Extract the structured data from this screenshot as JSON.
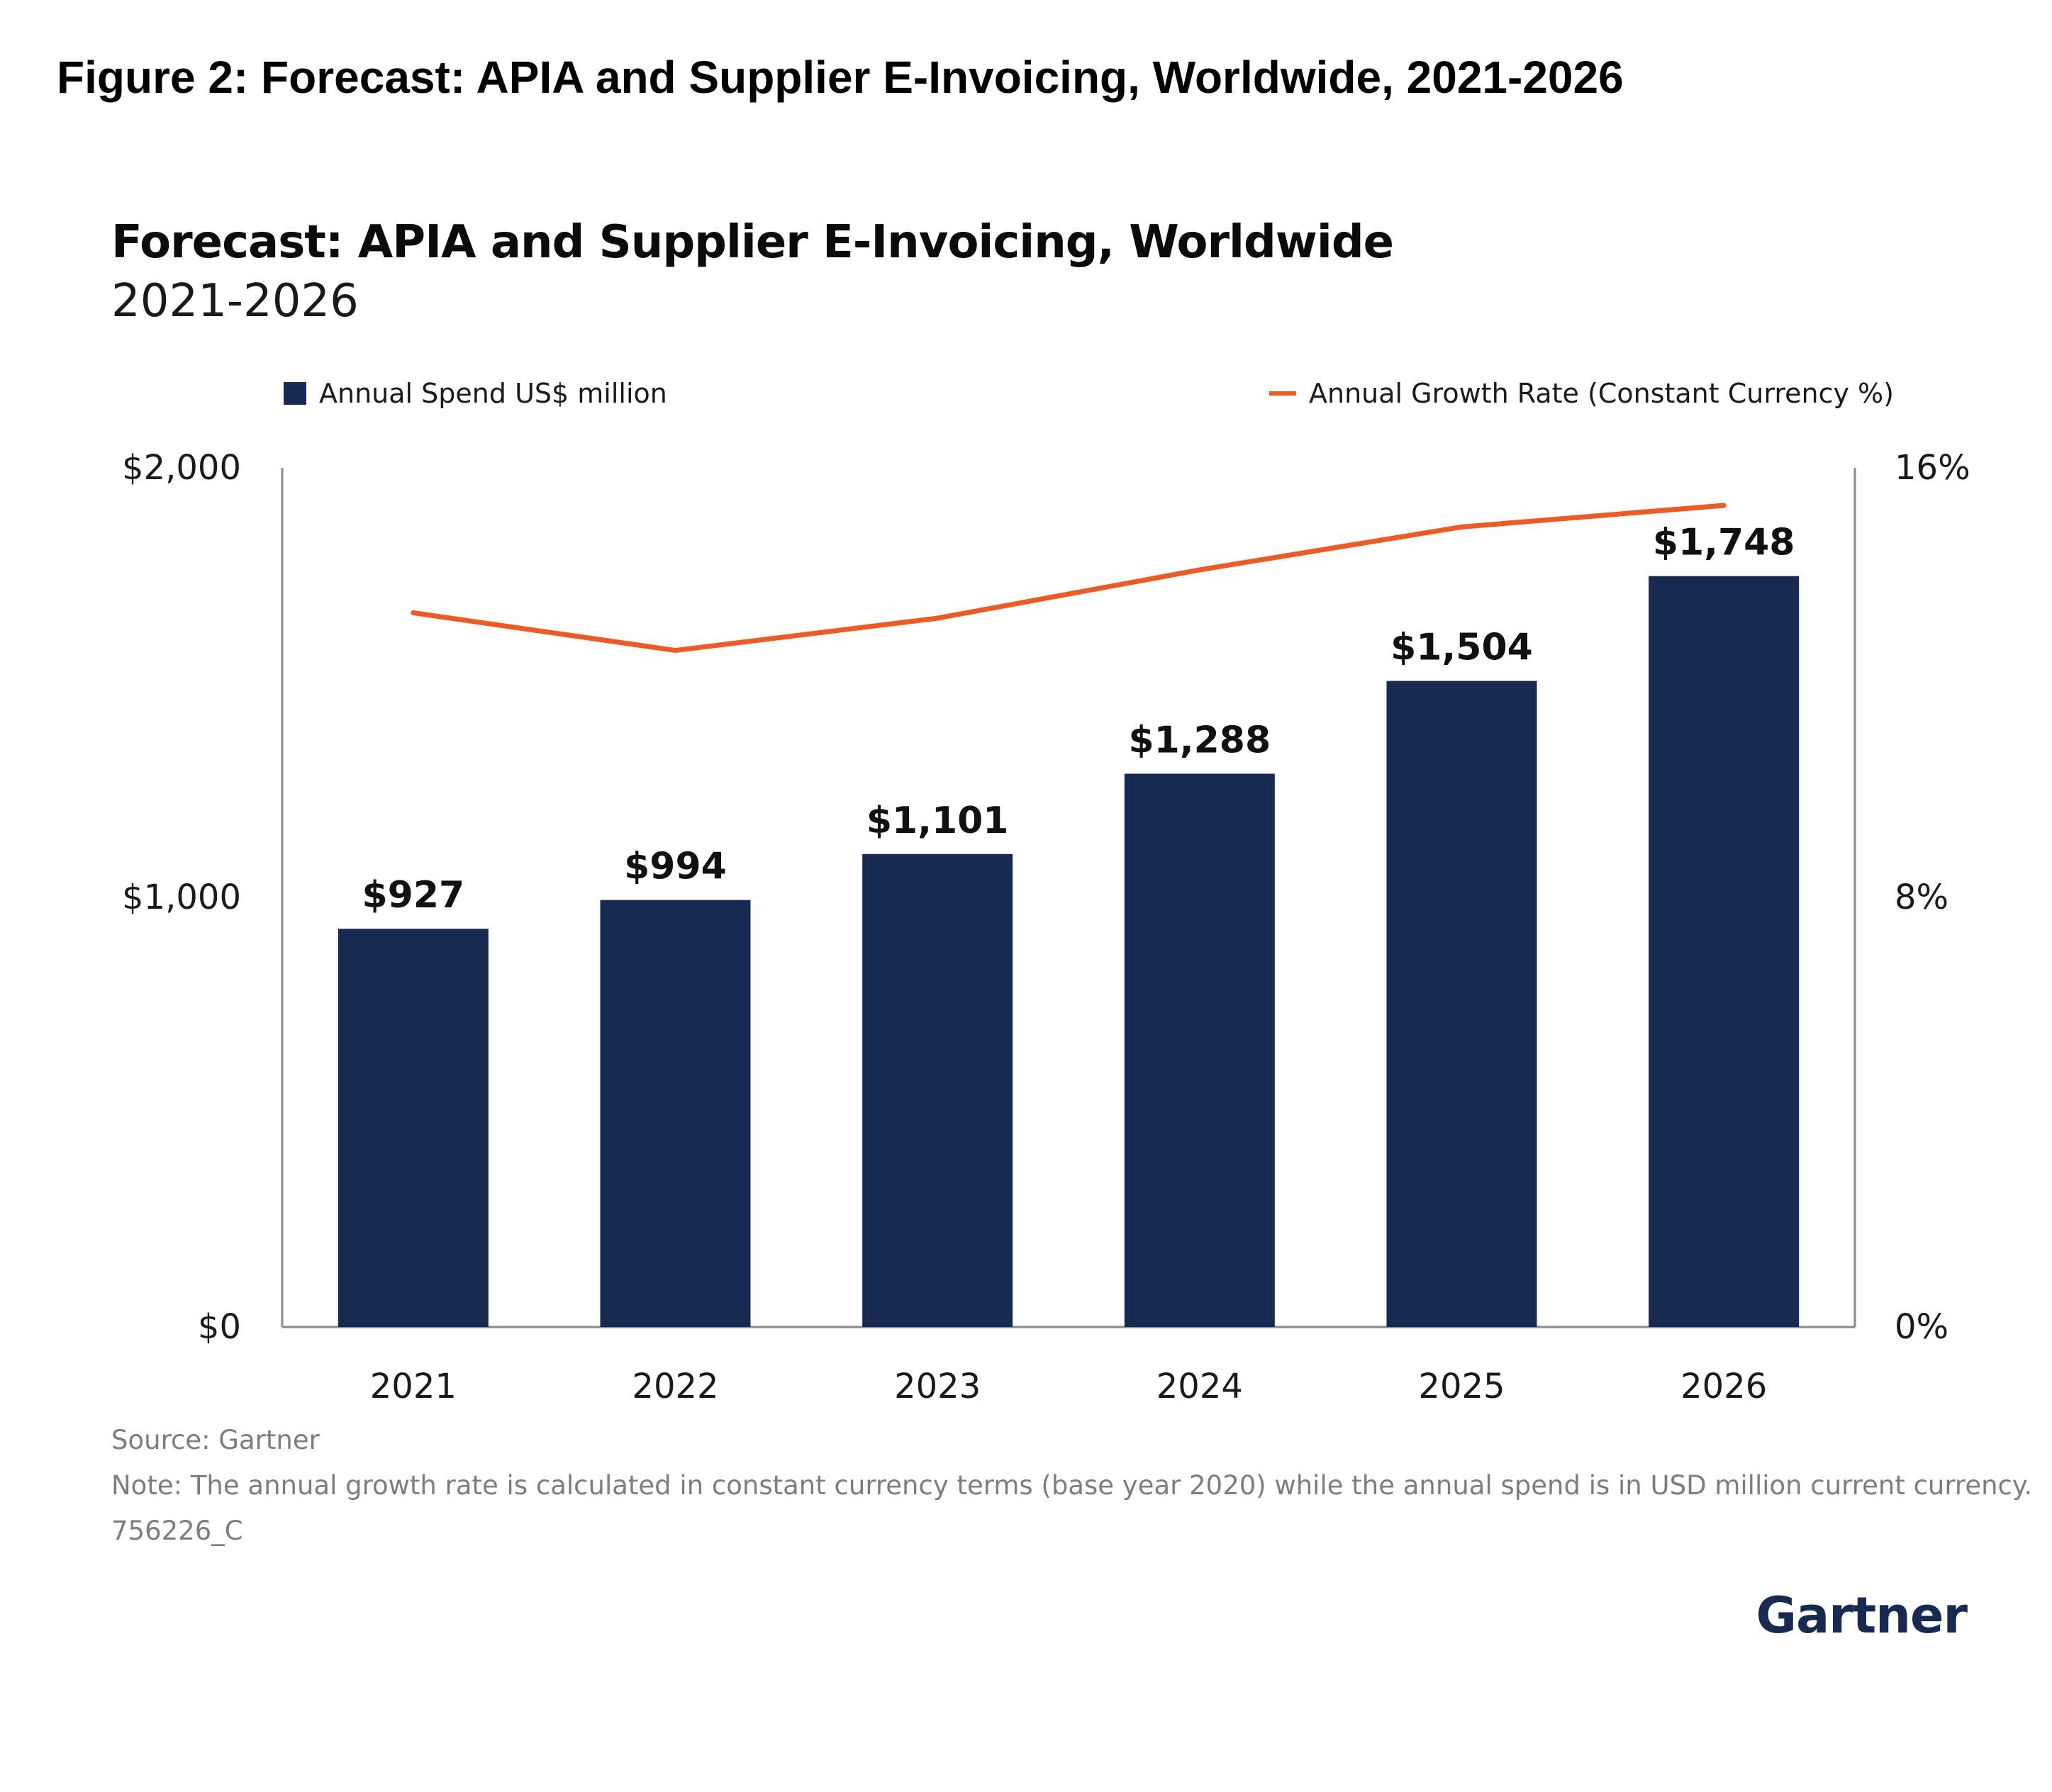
{
  "figure_title": "Figure 2: Forecast: APIA and Supplier E-Invoicing, Worldwide, 2021-2026",
  "chart_data": {
    "type": "bar",
    "title": "Forecast: APIA and Supplier E-Invoicing, Worldwide",
    "subtitle": "2021-2026",
    "categories": [
      "2021",
      "2022",
      "2023",
      "2024",
      "2025",
      "2026"
    ],
    "series": [
      {
        "name": "Annual Spend US$ million",
        "type": "bar",
        "axis": "left",
        "color": "#172a52",
        "values": [
          927,
          994,
          1101,
          1288,
          1504,
          1748
        ],
        "labels": [
          "$927",
          "$994",
          "$1,101",
          "$1,288",
          "$1,504",
          "$1,748"
        ]
      },
      {
        "name": "Annual Growth Rate (Constant Currency %)",
        "type": "line",
        "axis": "right",
        "color": "#f05a22",
        "values": [
          13.3,
          12.6,
          13.2,
          14.1,
          14.9,
          15.3
        ]
      }
    ],
    "y_left": {
      "lim": [
        0,
        2000
      ],
      "ticks": [
        0,
        1000,
        2000
      ],
      "tick_labels": [
        "$0",
        "$1,000",
        "$2,000"
      ]
    },
    "y_right": {
      "lim": [
        0,
        16
      ],
      "ticks": [
        0,
        8,
        16
      ],
      "tick_labels": [
        "0%",
        "8%",
        "16%"
      ]
    },
    "grid": false,
    "legend_position": "top"
  },
  "footer": {
    "source": "Source: Gartner",
    "note": "Note: The annual growth rate  is calculated in constant currency terms (base year 2020) while the annual spend is in USD million current currency.",
    "code": "756226_C"
  },
  "brand": "Gartner"
}
